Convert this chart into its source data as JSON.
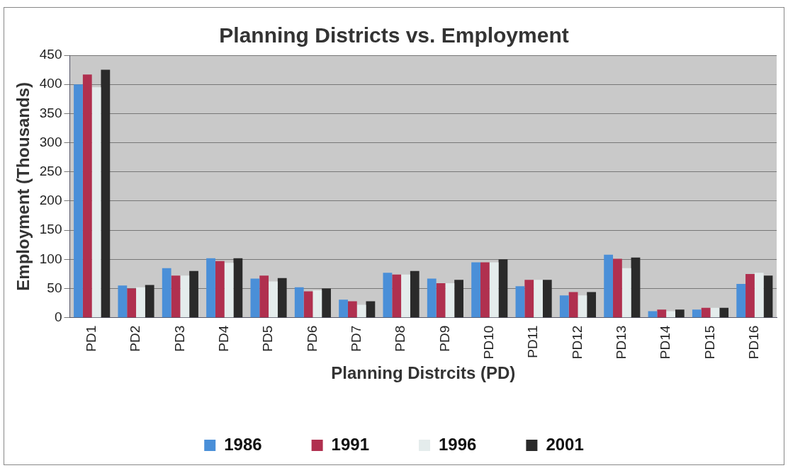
{
  "chart_data": {
    "type": "bar",
    "title": "Planning Districts vs. Employment",
    "xlabel": "Planning Distrcits (PD)",
    "ylabel": "Employment (Thousands)",
    "categories": [
      "PD1",
      "PD2",
      "PD3",
      "PD4",
      "PD5",
      "PD6",
      "PD7",
      "PD8",
      "PD9",
      "PD10",
      "PD11",
      "PD12",
      "PD13",
      "PD14",
      "PD15",
      "PD16"
    ],
    "series": [
      {
        "name": "1986",
        "color": "#4a8fd8",
        "values": [
          400,
          55,
          85,
          102,
          67,
          52,
          31,
          77,
          67,
          95,
          54,
          38,
          108,
          11,
          14,
          58
        ]
      },
      {
        "name": "1991",
        "color": "#b0304f",
        "values": [
          417,
          50,
          72,
          97,
          72,
          45,
          28,
          74,
          59,
          95,
          65,
          44,
          101,
          14,
          17,
          75
        ]
      },
      {
        "name": "1996",
        "color": "#e4ecec",
        "values": [
          395,
          52,
          72,
          94,
          62,
          47,
          22,
          74,
          59,
          95,
          65,
          38,
          85,
          11,
          17,
          77
        ]
      },
      {
        "name": "2001",
        "color": "#2a2a2a",
        "values": [
          425,
          56,
          80,
          102,
          68,
          50,
          28,
          80,
          65,
          100,
          65,
          44,
          103,
          14,
          17,
          72
        ]
      }
    ],
    "ylim": [
      0,
      450
    ],
    "yticks": [
      0,
      50,
      100,
      150,
      200,
      250,
      300,
      350,
      400,
      450
    ],
    "grid": "y",
    "legend": "bottom"
  }
}
